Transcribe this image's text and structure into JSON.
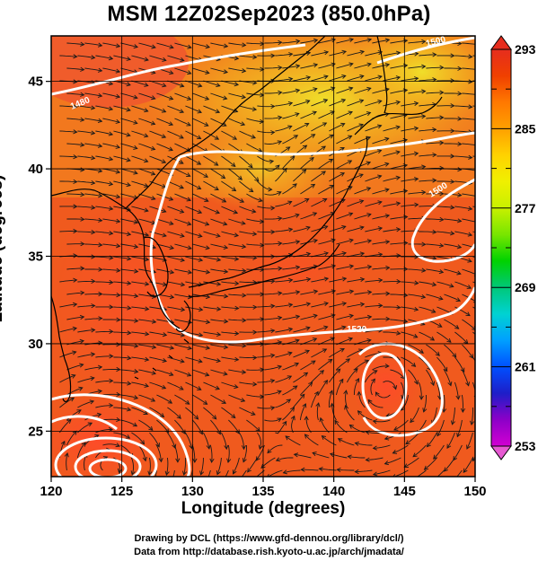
{
  "title": "MSM 12Z02Sep2023 (850.0hPa)",
  "xlabel": "Longitude (degrees)",
  "ylabel": "Latitude  (degrees)",
  "credit_line1": "Drawing by DCL (https://www.gfd-dennou.org/library/dcl/)",
  "credit_line2": "Data from http://database.rish.kyoto-u.ac.jp/arch/jmadata/",
  "map": {
    "lon_range": [
      120,
      150
    ],
    "lat_range": [
      22.4,
      47.6
    ],
    "lon_ticks": [
      "120",
      "125",
      "130",
      "135",
      "140",
      "145",
      "150"
    ],
    "lat_ticks": [
      "25",
      "30",
      "35",
      "40",
      "45"
    ],
    "grid_lon_step": 5,
    "grid_lat_step": 5,
    "field": "temperature (K)",
    "overlay": "wind streamlines",
    "contour_labels": [
      "1480",
      "1500",
      "1500",
      "1520"
    ]
  },
  "colorbar": {
    "min": 253,
    "max": 293,
    "tick_labels": [
      "293",
      "285",
      "277",
      "269",
      "261",
      "253"
    ],
    "colors": [
      "#d200d2",
      "#8c00c8",
      "#1e1ec8",
      "#0050ff",
      "#00a0ff",
      "#00d2d2",
      "#00c878",
      "#00d200",
      "#78e600",
      "#c8f000",
      "#f0f000",
      "#ffd200",
      "#ffa000",
      "#ff7800",
      "#f04000",
      "#e62d1e"
    ]
  },
  "colors": {
    "coast": "#000000",
    "contour": "#ffffff",
    "streamline": "#1a1a1a"
  }
}
